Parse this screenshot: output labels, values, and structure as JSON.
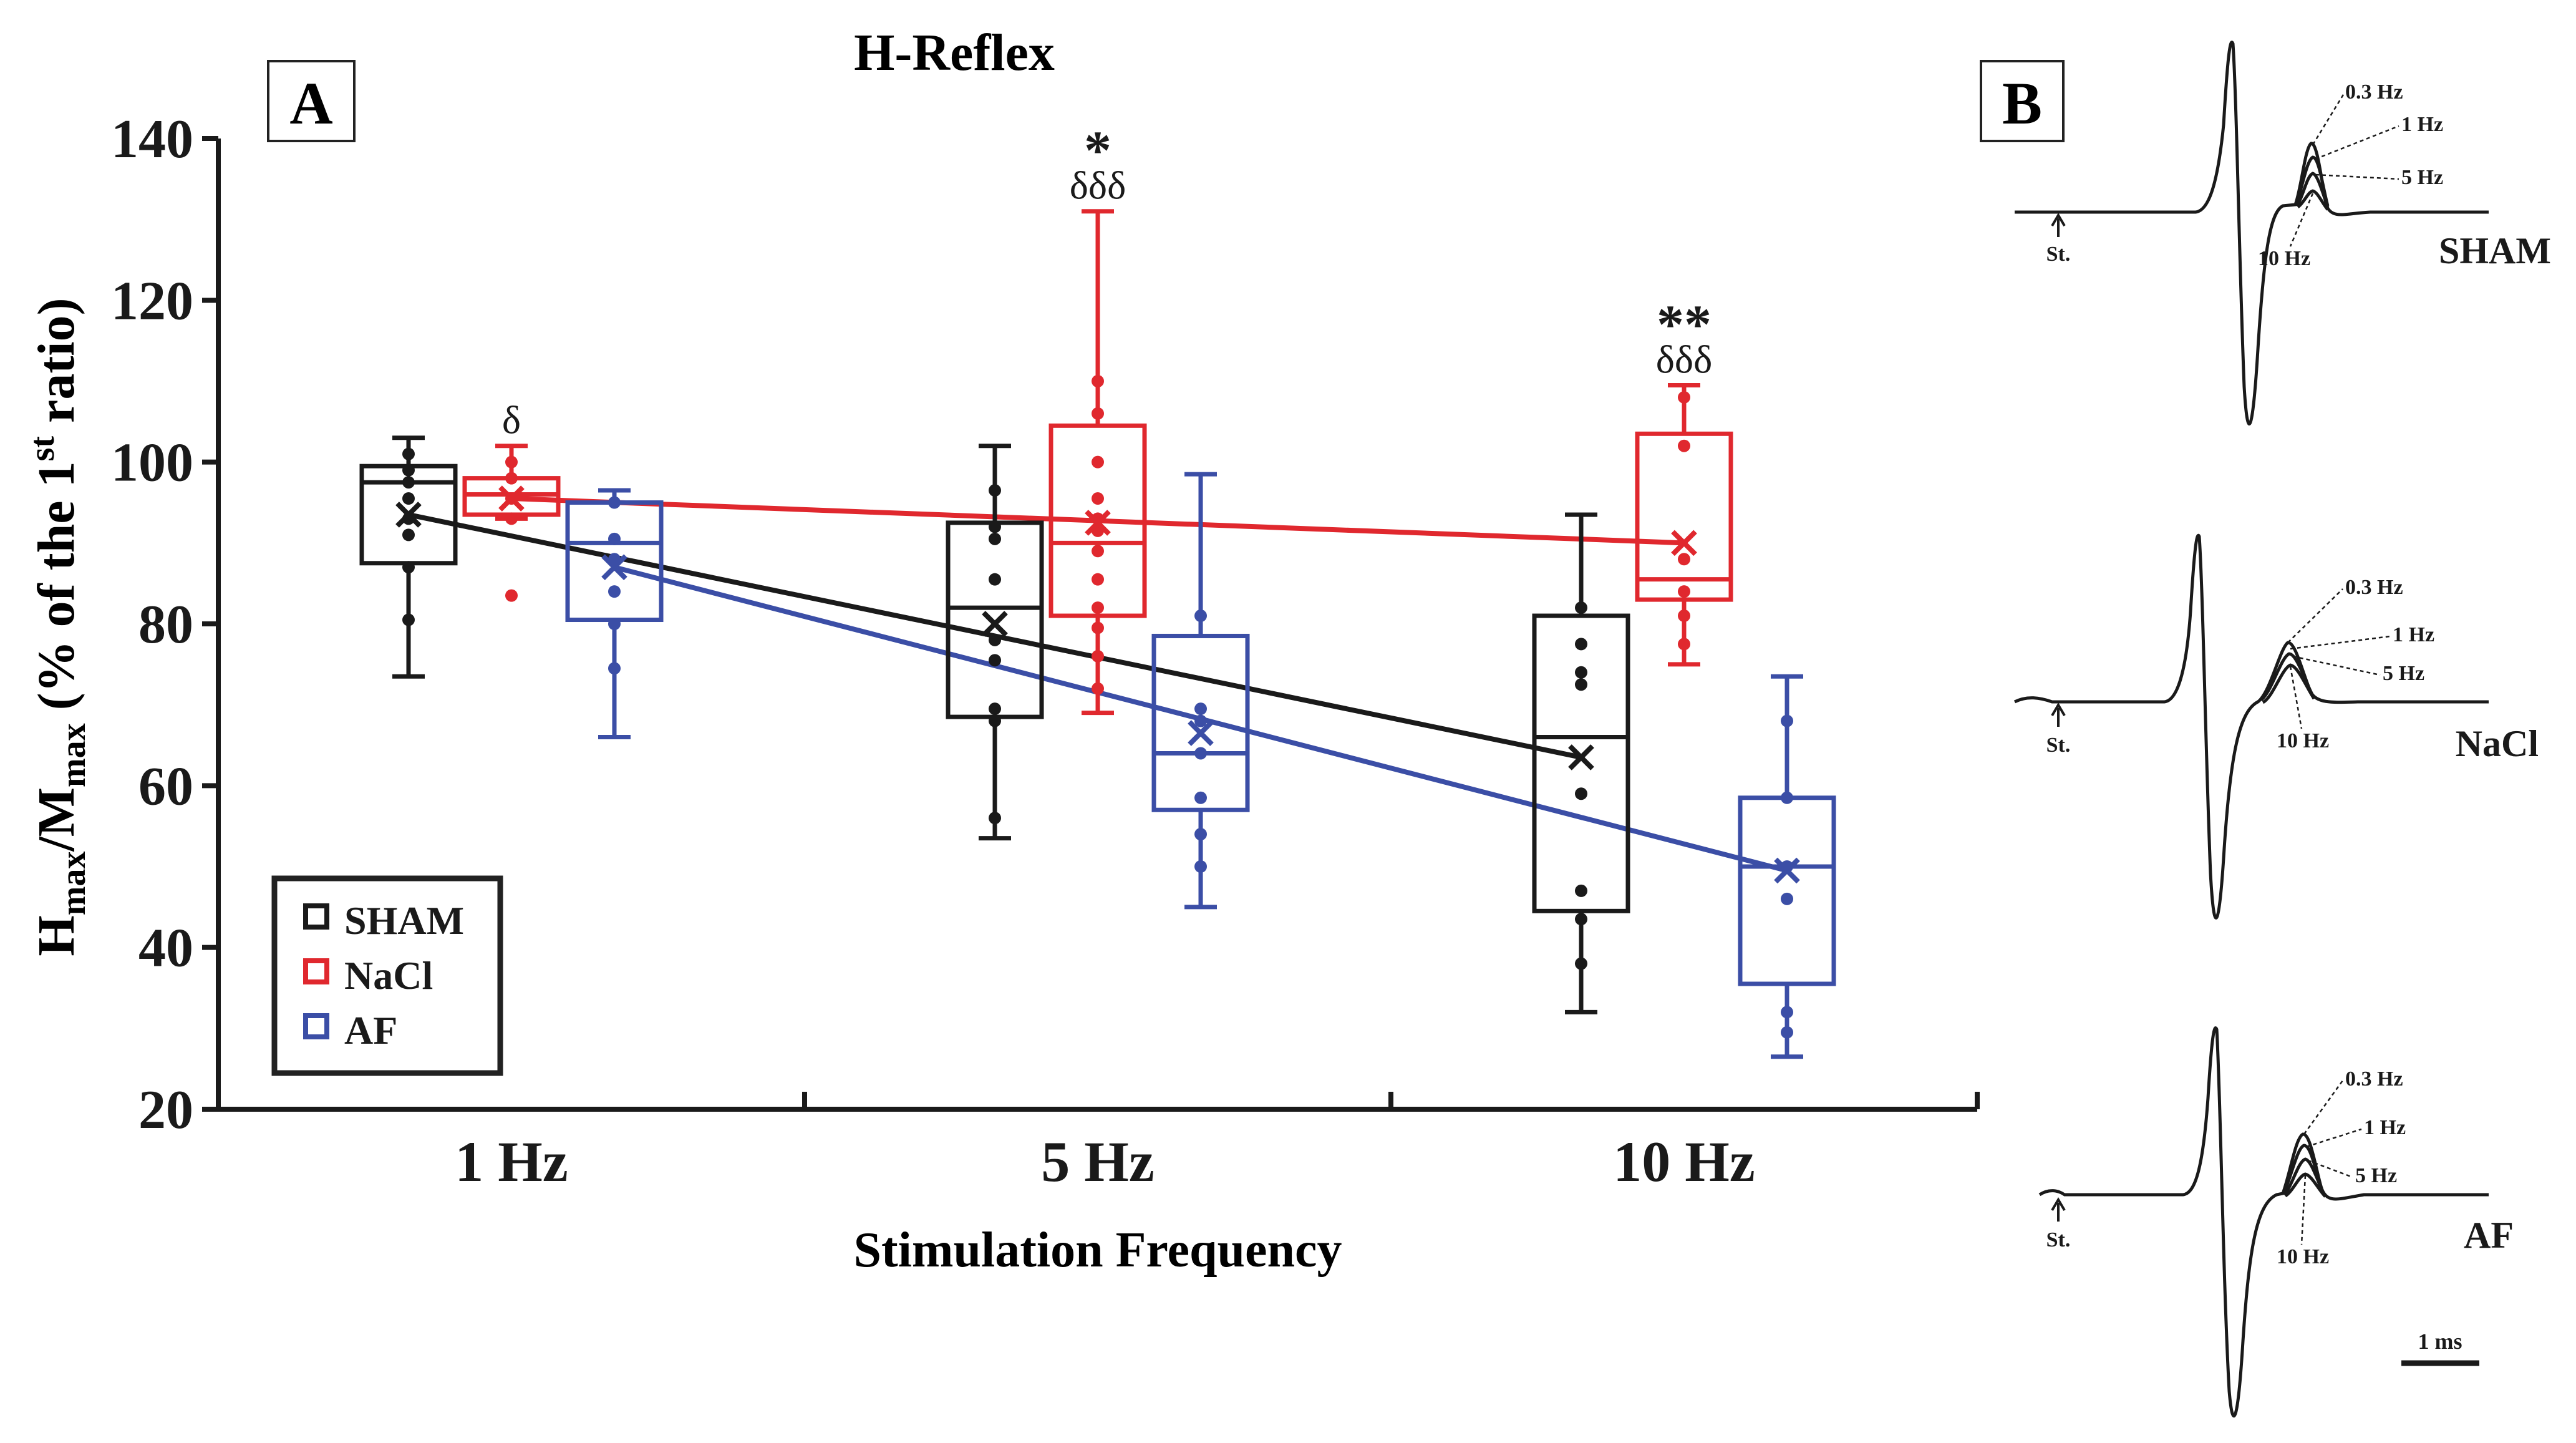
{
  "panel_a": {
    "label": "A",
    "chart_data": {
      "type": "box",
      "title": "H-Reflex",
      "xlabel": "Stimulation Frequency",
      "ylabel": {
        "H": "H",
        "max_sub_1": "max",
        "slash_M": "/M",
        "max_sub_2": "max",
        "paren_open": " (% of the 1",
        "st": "st",
        "paren_close": " ratio)"
      },
      "ylim": [
        20,
        140
      ],
      "yticks": [
        "20",
        "40",
        "60",
        "80",
        "100",
        "120",
        "140"
      ],
      "categories": [
        "1 Hz",
        "5 Hz",
        "10 Hz"
      ],
      "series": [
        {
          "name": "SHAM",
          "color": "#1a1a1a",
          "boxes": [
            {
              "whisker_low": 73.5,
              "q1": 87.5,
              "median": 97.5,
              "q3": 99.5,
              "whisker_high": 103,
              "mean": 93.5,
              "points": [
                80.5,
                87,
                91,
                93,
                95.5,
                97.5,
                99,
                101
              ]
            },
            {
              "whisker_low": 53.5,
              "q1": 68.5,
              "median": 82,
              "q3": 92.5,
              "whisker_high": 102,
              "mean": 80,
              "points": [
                56,
                68,
                69.5,
                75.5,
                78,
                85.5,
                90.5,
                92,
                96.5
              ]
            },
            {
              "whisker_low": 32,
              "q1": 44.5,
              "median": 66,
              "q3": 81,
              "whisker_high": 93.5,
              "mean": 63.5,
              "points": [
                38,
                43.5,
                47,
                59,
                72.5,
                74,
                77.5,
                82
              ]
            }
          ]
        },
        {
          "name": "NaCl",
          "color": "#e0282e",
          "boxes": [
            {
              "whisker_low": 93,
              "q1": 93.5,
              "median": 96,
              "q3": 98,
              "whisker_high": 102,
              "mean": 95.5,
              "points": [
                83.5,
                93,
                95.5,
                98,
                100
              ]
            },
            {
              "whisker_low": 69,
              "q1": 81,
              "median": 90,
              "q3": 104.5,
              "whisker_high": 131,
              "mean": 92.5,
              "points": [
                72,
                76,
                79.5,
                82,
                85.5,
                89,
                91.5,
                93,
                95.5,
                100,
                106,
                110
              ]
            },
            {
              "whisker_low": 75,
              "q1": 83,
              "median": 85.5,
              "q3": 103.5,
              "whisker_high": 109.5,
              "mean": 90,
              "points": [
                77.5,
                81,
                84,
                88,
                102,
                108
              ]
            }
          ]
        },
        {
          "name": "AF",
          "color": "#3b4ea6",
          "boxes": [
            {
              "whisker_low": 66,
              "q1": 80.5,
              "median": 90,
              "q3": 95,
              "whisker_high": 96.5,
              "mean": 87,
              "points": [
                74.5,
                80,
                84,
                88,
                90.5,
                95
              ]
            },
            {
              "whisker_low": 45,
              "q1": 57,
              "median": 64,
              "q3": 78.5,
              "whisker_high": 98.5,
              "mean": 66.5,
              "points": [
                50,
                54,
                58.5,
                64,
                68,
                69.5,
                81
              ]
            },
            {
              "whisker_low": 26.5,
              "q1": 35.5,
              "median": 50,
              "q3": 58.5,
              "whisker_high": 73.5,
              "mean": 49.5,
              "points": [
                29.5,
                32,
                46,
                50,
                58.5,
                68
              ]
            }
          ]
        }
      ],
      "mean_trend_lines": true,
      "annotations": [
        {
          "category": "1 Hz",
          "series": "NaCl",
          "text": "δ"
        },
        {
          "category": "5 Hz",
          "series": "NaCl",
          "stars": "*",
          "text": "δδδ"
        },
        {
          "category": "10 Hz",
          "series": "NaCl",
          "stars": "**",
          "text": "δδδ"
        }
      ],
      "legend": {
        "position": "bottom-left",
        "entries": [
          "SHAM",
          "NaCl",
          "AF"
        ]
      }
    }
  },
  "panel_b": {
    "label": "B",
    "traces": [
      {
        "group": "SHAM",
        "stim_marker": "St.",
        "freq_labels": [
          "0.3 Hz",
          "1 Hz",
          "5 Hz",
          "10 Hz"
        ]
      },
      {
        "group": "NaCl",
        "stim_marker": "St.",
        "freq_labels": [
          "0.3 Hz",
          "1 Hz",
          "5 Hz",
          "10 Hz"
        ]
      },
      {
        "group": "AF",
        "stim_marker": "St.",
        "freq_labels": [
          "0.3 Hz",
          "1 Hz",
          "5 Hz",
          "10 Hz"
        ]
      }
    ],
    "scale_bar_label": "1 ms"
  }
}
